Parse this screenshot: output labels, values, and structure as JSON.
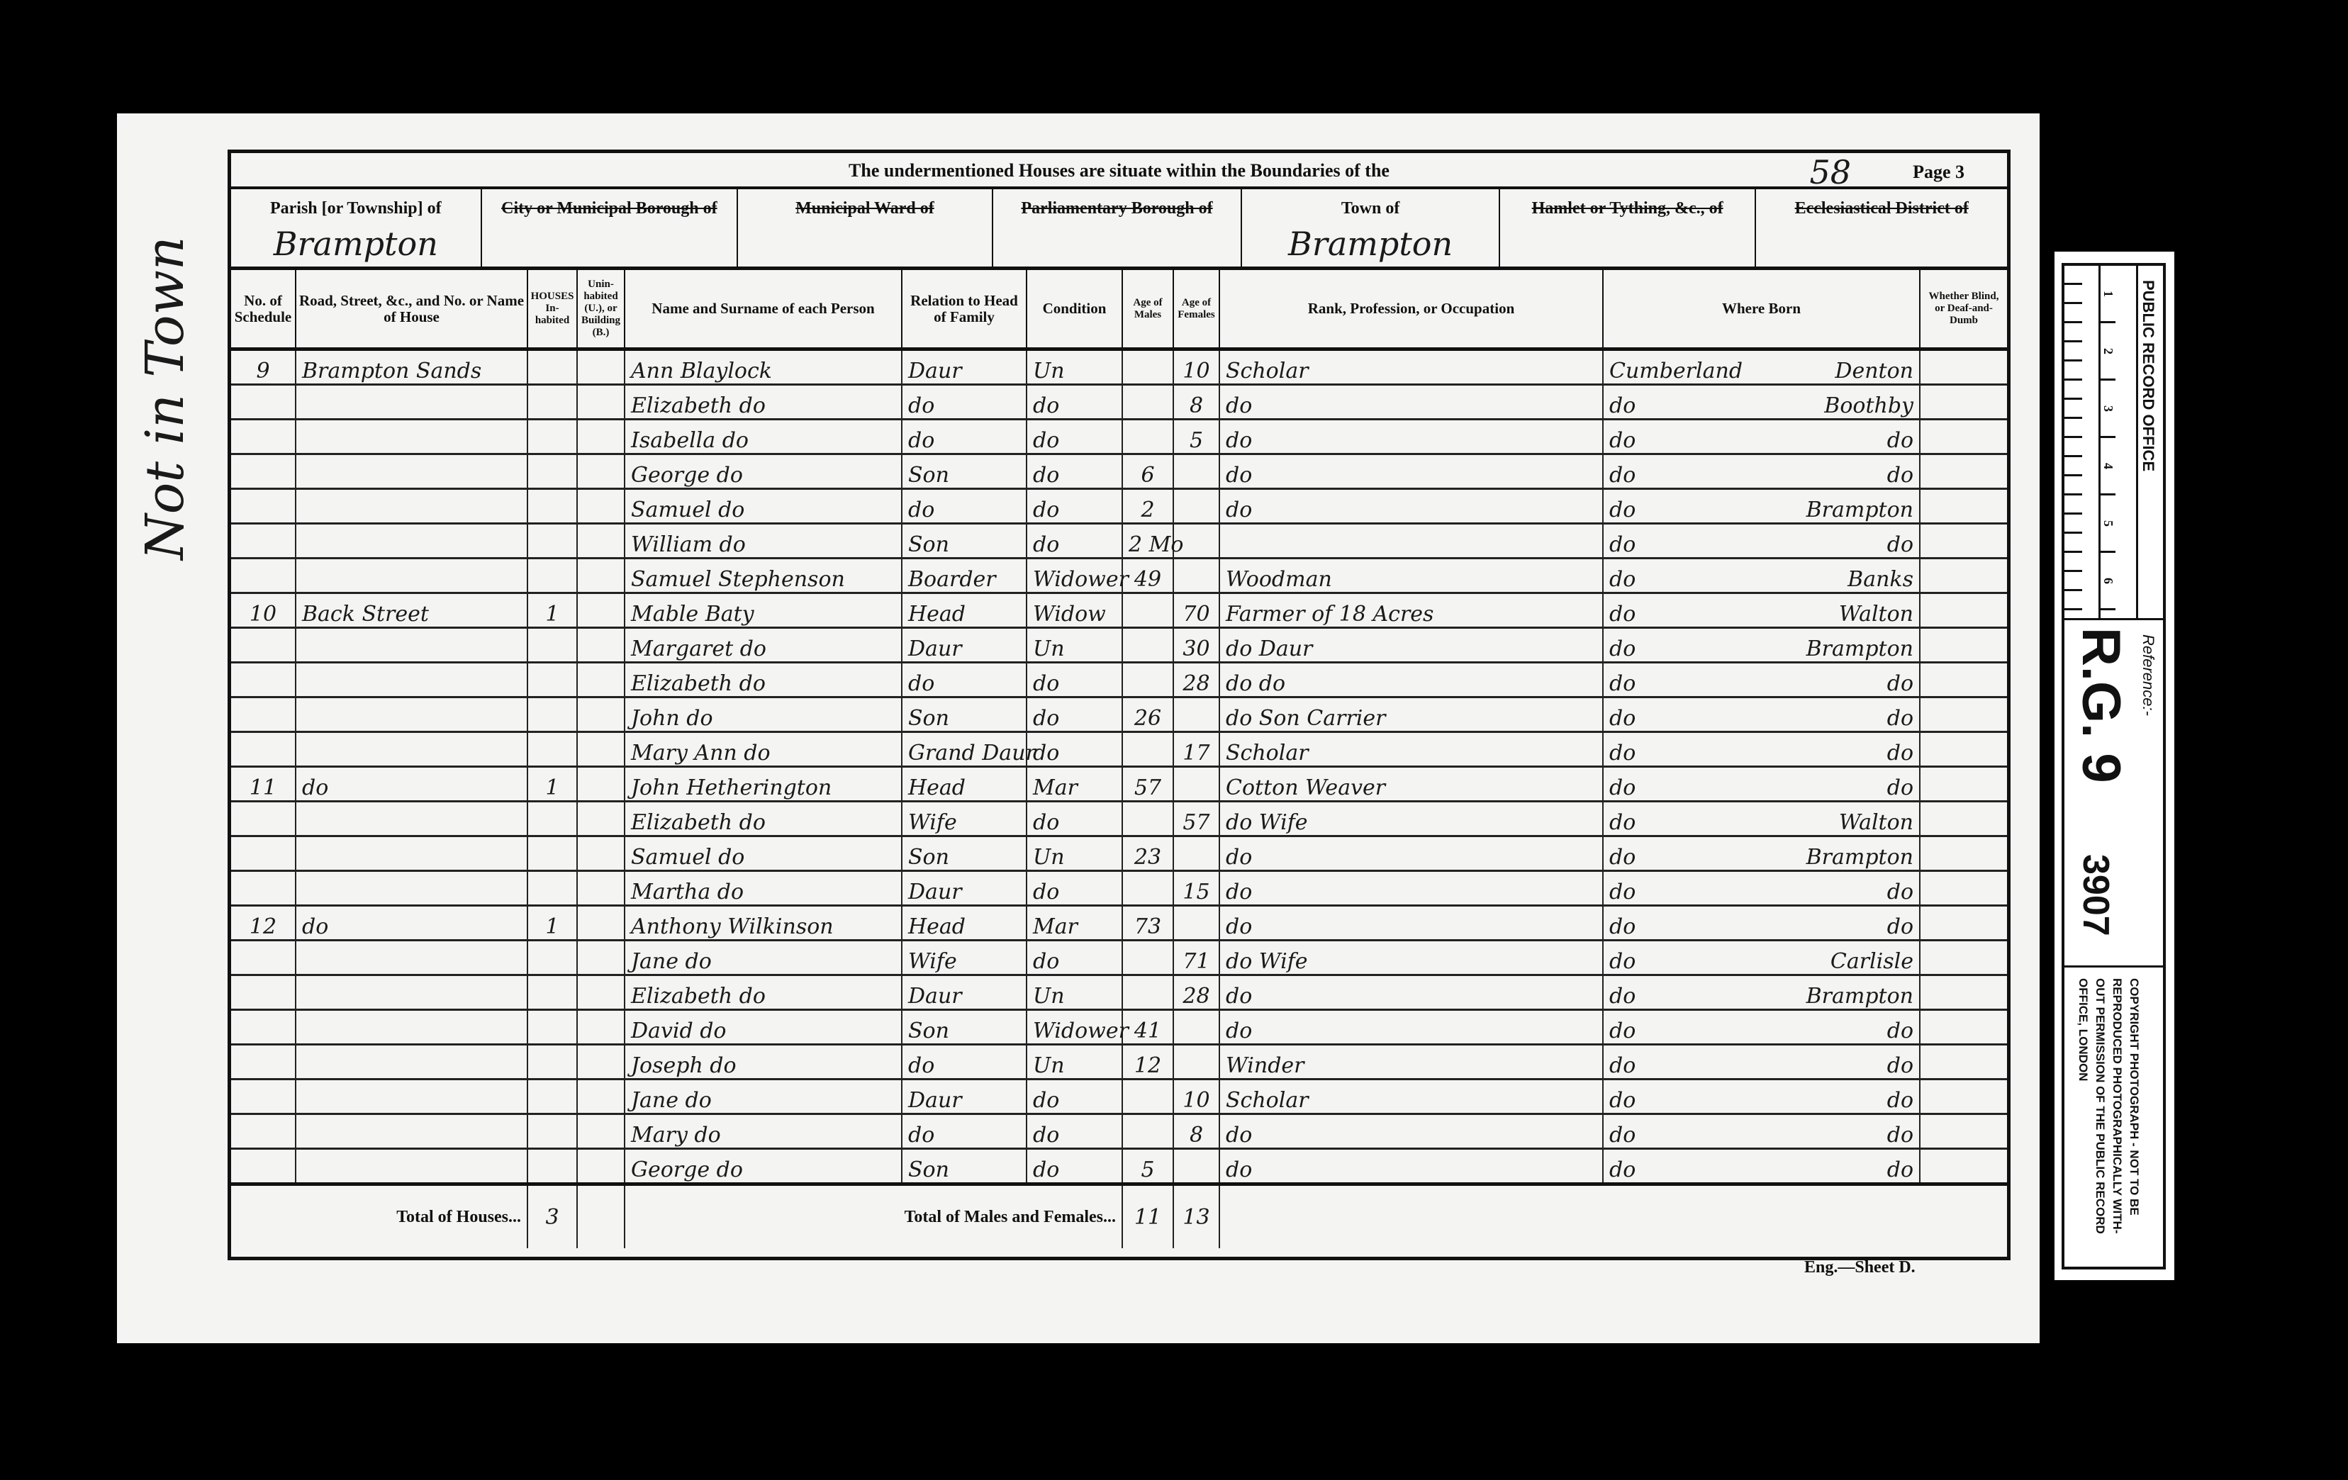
{
  "header": {
    "title": "The undermentioned Houses are situate within the Boundaries of the",
    "folio": "58",
    "page": "Page 3"
  },
  "places": [
    {
      "label": "Parish [or Township] of",
      "struck": false,
      "value": "Brampton"
    },
    {
      "label": "City or Municipal Borough of",
      "struck": true,
      "value": ""
    },
    {
      "label": "Municipal Ward of",
      "struck": true,
      "value": ""
    },
    {
      "label": "Parliamentary Borough of",
      "struck": true,
      "value": ""
    },
    {
      "label": "Town of",
      "struck": false,
      "value": "Brampton"
    },
    {
      "label": "Hamlet or Tything, &c., of",
      "struck": true,
      "value": ""
    },
    {
      "label": "Ecclesiastical District of",
      "struck": true,
      "value": ""
    }
  ],
  "columns": [
    "No. of Schedule",
    "Road, Street, &c., and No. or Name of House",
    "HOUSES In-habited",
    "Unin-habited (U.), or Building (B.)",
    "Name and Surname of each Person",
    "Relation to Head of Family",
    "Condition",
    "Age of Males",
    "Age of Females",
    "Rank, Profession, or Occupation",
    "Where Born",
    "Whether Blind, or Deaf-and-Dumb"
  ],
  "rows": [
    {
      "schedule": "9",
      "street": "Brampton Sands",
      "inhabited": "",
      "uninhabited": "",
      "name": "Ann Blaylock",
      "relation": "Daur",
      "condition": "Un",
      "male": "",
      "female": "10",
      "occupation": "Scholar",
      "born_county": "Cumberland",
      "born_place": "Denton",
      "blind": ""
    },
    {
      "schedule": "",
      "street": "",
      "inhabited": "",
      "uninhabited": "",
      "name": "Elizabeth   do",
      "relation": "do",
      "condition": "do",
      "male": "",
      "female": "8",
      "occupation": "do",
      "born_county": "do",
      "born_place": "Boothby",
      "blind": ""
    },
    {
      "schedule": "",
      "street": "",
      "inhabited": "",
      "uninhabited": "",
      "name": "Isabella   do",
      "relation": "do",
      "condition": "do",
      "male": "",
      "female": "5",
      "occupation": "do",
      "born_county": "do",
      "born_place": "do",
      "blind": ""
    },
    {
      "schedule": "",
      "street": "",
      "inhabited": "",
      "uninhabited": "",
      "name": "George   do",
      "relation": "Son",
      "condition": "do",
      "male": "6",
      "female": "",
      "occupation": "do",
      "born_county": "do",
      "born_place": "do",
      "blind": ""
    },
    {
      "schedule": "",
      "street": "",
      "inhabited": "",
      "uninhabited": "",
      "name": "Samuel   do",
      "relation": "do",
      "condition": "do",
      "male": "2",
      "female": "",
      "occupation": "do",
      "born_county": "do",
      "born_place": "Brampton",
      "blind": ""
    },
    {
      "schedule": "",
      "street": "",
      "inhabited": "",
      "uninhabited": "",
      "name": "William   do",
      "relation": "Son",
      "condition": "do",
      "male": "2 Mo",
      "female": "",
      "occupation": "",
      "born_county": "do",
      "born_place": "do",
      "blind": ""
    },
    {
      "schedule": "",
      "street": "",
      "inhabited": "",
      "uninhabited": "",
      "name": "Samuel Stephenson",
      "relation": "Boarder",
      "condition": "Widower",
      "male": "49",
      "female": "",
      "occupation": "Woodman",
      "born_county": "do",
      "born_place": "Banks",
      "blind": ""
    },
    {
      "schedule": "10",
      "street": "Back Street",
      "inhabited": "1",
      "uninhabited": "",
      "name": "Mable Baty",
      "relation": "Head",
      "condition": "Widow",
      "male": "",
      "female": "70",
      "occupation": "Farmer of 18 Acres",
      "born_county": "do",
      "born_place": "Walton",
      "blind": ""
    },
    {
      "schedule": "",
      "street": "",
      "inhabited": "",
      "uninhabited": "",
      "name": "Margaret   do",
      "relation": "Daur",
      "condition": "Un",
      "male": "",
      "female": "30",
      "occupation": "do  Daur",
      "born_county": "do",
      "born_place": "Brampton",
      "blind": ""
    },
    {
      "schedule": "",
      "street": "",
      "inhabited": "",
      "uninhabited": "",
      "name": "Elizabeth   do",
      "relation": "do",
      "condition": "do",
      "male": "",
      "female": "28",
      "occupation": "do   do",
      "born_county": "do",
      "born_place": "do",
      "blind": ""
    },
    {
      "schedule": "",
      "street": "",
      "inhabited": "",
      "uninhabited": "",
      "name": "John   do",
      "relation": "Son",
      "condition": "do",
      "male": "26",
      "female": "",
      "occupation": "do  Son  Carrier",
      "born_county": "do",
      "born_place": "do",
      "blind": ""
    },
    {
      "schedule": "",
      "street": "",
      "inhabited": "",
      "uninhabited": "",
      "name": "Mary Ann   do",
      "relation": "Grand Daur",
      "condition": "do",
      "male": "",
      "female": "17",
      "occupation": "Scholar",
      "born_county": "do",
      "born_place": "do",
      "blind": ""
    },
    {
      "schedule": "11",
      "street": "do",
      "inhabited": "1",
      "uninhabited": "",
      "name": "John Hetherington",
      "relation": "Head",
      "condition": "Mar",
      "male": "57",
      "female": "",
      "occupation": "Cotton Weaver",
      "born_county": "do",
      "born_place": "do",
      "blind": ""
    },
    {
      "schedule": "",
      "street": "",
      "inhabited": "",
      "uninhabited": "",
      "name": "Elizabeth   do",
      "relation": "Wife",
      "condition": "do",
      "male": "",
      "female": "57",
      "occupation": "do   Wife",
      "born_county": "do",
      "born_place": "Walton",
      "blind": ""
    },
    {
      "schedule": "",
      "street": "",
      "inhabited": "",
      "uninhabited": "",
      "name": "Samuel   do",
      "relation": "Son",
      "condition": "Un",
      "male": "23",
      "female": "",
      "occupation": "do",
      "born_county": "do",
      "born_place": "Brampton",
      "blind": ""
    },
    {
      "schedule": "",
      "street": "",
      "inhabited": "",
      "uninhabited": "",
      "name": "Martha   do",
      "relation": "Daur",
      "condition": "do",
      "male": "",
      "female": "15",
      "occupation": "do",
      "born_county": "do",
      "born_place": "do",
      "blind": ""
    },
    {
      "schedule": "12",
      "street": "do",
      "inhabited": "1",
      "uninhabited": "",
      "name": "Anthony Wilkinson",
      "relation": "Head",
      "condition": "Mar",
      "male": "73",
      "female": "",
      "occupation": "do",
      "born_county": "do",
      "born_place": "do",
      "blind": ""
    },
    {
      "schedule": "",
      "street": "",
      "inhabited": "",
      "uninhabited": "",
      "name": "Jane   do",
      "relation": "Wife",
      "condition": "do",
      "male": "",
      "female": "71",
      "occupation": "do   Wife",
      "born_county": "do",
      "born_place": "Carlisle",
      "blind": ""
    },
    {
      "schedule": "",
      "street": "",
      "inhabited": "",
      "uninhabited": "",
      "name": "Elizabeth   do",
      "relation": "Daur",
      "condition": "Un",
      "male": "",
      "female": "28",
      "occupation": "do",
      "born_county": "do",
      "born_place": "Brampton",
      "blind": ""
    },
    {
      "schedule": "",
      "street": "",
      "inhabited": "",
      "uninhabited": "",
      "name": "David   do",
      "relation": "Son",
      "condition": "Widower",
      "male": "41",
      "female": "",
      "occupation": "do",
      "born_county": "do",
      "born_place": "do",
      "blind": ""
    },
    {
      "schedule": "",
      "street": "",
      "inhabited": "",
      "uninhabited": "",
      "name": "Joseph   do",
      "relation": "do",
      "condition": "Un",
      "male": "12",
      "female": "",
      "occupation": "Winder",
      "born_county": "do",
      "born_place": "do",
      "blind": ""
    },
    {
      "schedule": "",
      "street": "",
      "inhabited": "",
      "uninhabited": "",
      "name": "Jane   do",
      "relation": "Daur",
      "condition": "do",
      "male": "",
      "female": "10",
      "occupation": "Scholar",
      "born_county": "do",
      "born_place": "do",
      "blind": ""
    },
    {
      "schedule": "",
      "street": "",
      "inhabited": "",
      "uninhabited": "",
      "name": "Mary   do",
      "relation": "do",
      "condition": "do",
      "male": "",
      "female": "8",
      "occupation": "do",
      "born_county": "do",
      "born_place": "do",
      "blind": ""
    },
    {
      "schedule": "",
      "street": "",
      "inhabited": "",
      "uninhabited": "",
      "name": "George   do",
      "relation": "Son",
      "condition": "do",
      "male": "5",
      "female": "",
      "occupation": "do",
      "born_county": "do",
      "born_place": "do",
      "blind": ""
    }
  ],
  "totals": {
    "houses_label": "Total of Houses...",
    "houses": "3",
    "persons_label": "Total of Males and Females...",
    "males": "11",
    "females": "13"
  },
  "footer": "Eng.—Sheet D.",
  "margin_note": "Not in Town",
  "archive_strip": {
    "office": "PUBLIC RECORD OFFICE",
    "ruler_numbers": [
      "1",
      "2",
      "3",
      "4",
      "5",
      "6"
    ],
    "reference_label": "Reference:-",
    "series": "R.G. 9",
    "piece": "3907",
    "copyright": "COPYRIGHT PHOTOGRAPH - NOT TO BE REPRODUCED PHOTOGRAPHICALLY WITH-OUT PERMISSION OF THE PUBLIC RECORD OFFICE, LONDON"
  }
}
